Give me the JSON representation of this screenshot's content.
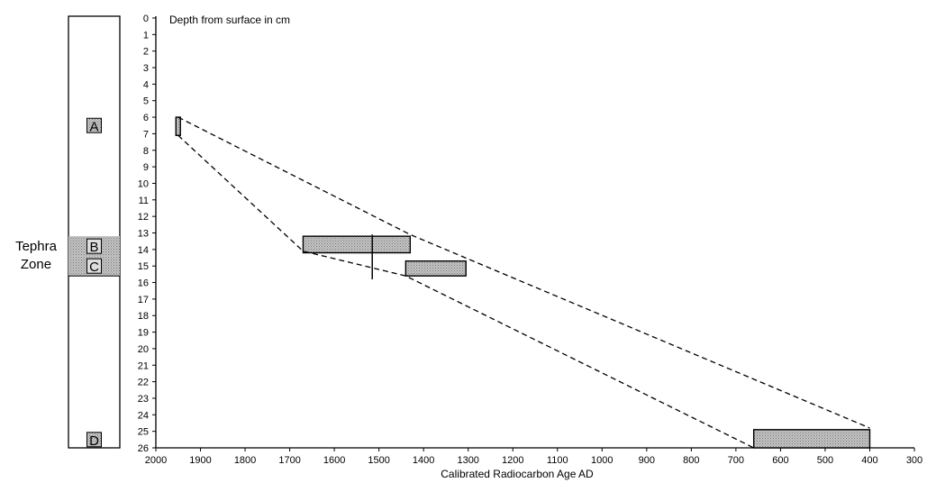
{
  "chart_data": {
    "type": "scatter",
    "title": "",
    "ylabel": "Depth from surface in cm",
    "xlabel": "Calibrated Radiocarbon Age AD",
    "x_reversed": true,
    "xlim": [
      2000,
      300
    ],
    "ylim": [
      0,
      26
    ],
    "y_inverted": true,
    "xticks": [
      "2000",
      "1900",
      "1800",
      "1700",
      "1600",
      "1500",
      "1400",
      "1300",
      "1200",
      "1100",
      "1000",
      "900",
      "800",
      "700",
      "600",
      "500",
      "400",
      "300"
    ],
    "yticks": [
      "0",
      "1",
      "2",
      "3",
      "4",
      "5",
      "6",
      "7",
      "8",
      "9",
      "10",
      "11",
      "12",
      "13",
      "14",
      "15",
      "16",
      "17",
      "18",
      "19",
      "20",
      "21",
      "22",
      "23",
      "24",
      "25",
      "26"
    ],
    "tephra_column": {
      "label_line1": "Tephra",
      "label_line2": "Zone",
      "zones": [
        {
          "label": "A",
          "depth_top": 6.0,
          "depth_bottom": 7.0,
          "band": false
        },
        {
          "label": "B",
          "depth_top": 13.2,
          "depth_bottom": 14.4,
          "band": true
        },
        {
          "label": "C",
          "depth_top": 14.4,
          "depth_bottom": 15.6,
          "band": true
        },
        {
          "label": "D",
          "depth_top": 25.0,
          "depth_bottom": 26.0,
          "band": false
        }
      ]
    },
    "date_ranges": [
      {
        "age_from": 1955,
        "age_to": 1945,
        "depth_top": 6.0,
        "depth_bottom": 7.1
      },
      {
        "age_from": 1670,
        "age_to": 1430,
        "depth_top": 13.2,
        "depth_bottom": 14.2
      },
      {
        "age_from": 1440,
        "age_to": 1305,
        "depth_top": 14.7,
        "depth_bottom": 15.6
      },
      {
        "age_from": 660,
        "age_to": 400,
        "depth_top": 24.9,
        "depth_bottom": 26.0
      }
    ],
    "vertical_marker": {
      "age": 1515,
      "depth_from": 13.1,
      "depth_to": 15.8
    },
    "envelope_lines": [
      {
        "points": [
          [
            1950,
            6.0
          ],
          [
            1430,
            13.1
          ],
          [
            400,
            24.8
          ]
        ]
      },
      {
        "points": [
          [
            1950,
            7.1
          ],
          [
            1670,
            14.1
          ],
          [
            1440,
            15.6
          ],
          [
            660,
            26.0
          ]
        ]
      }
    ]
  }
}
